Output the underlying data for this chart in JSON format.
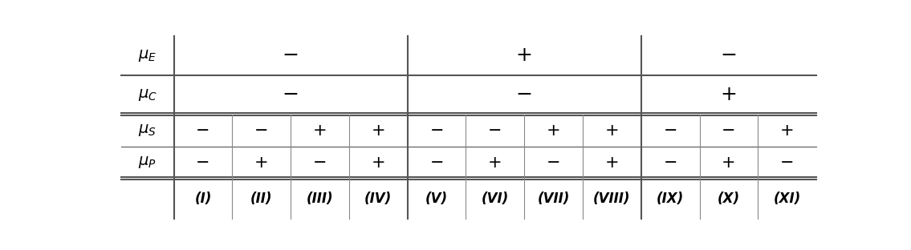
{
  "row_labels_latex": [
    "$\\mu_E$",
    "$\\mu_C$",
    "$\\mu_S$",
    "$\\mu_P$"
  ],
  "col_labels": [
    "(I)",
    "(II)",
    "(III)",
    "(IV)",
    "(V)",
    "(VI)",
    "(VII)",
    "(VIII)",
    "(IX)",
    "(X)",
    "(XI)"
  ],
  "mu_E": [
    "-",
    "-",
    "-",
    "-",
    "+",
    "+",
    "+",
    "+",
    "-",
    "-",
    "-"
  ],
  "mu_C": [
    "-",
    "-",
    "-",
    "-",
    "-",
    "-",
    "-",
    "-",
    "+",
    "+",
    "+"
  ],
  "mu_S": [
    "-",
    "-",
    "+",
    "+",
    "-",
    "-",
    "+",
    "+",
    "-",
    "-",
    "+"
  ],
  "mu_P": [
    "-",
    "+",
    "-",
    "+",
    "-",
    "+",
    "-",
    "+",
    "-",
    "+",
    "-"
  ],
  "n_cols": 11,
  "line_color": "#555555",
  "thin_line_color": "#888888",
  "background_color": "#ffffff",
  "text_color": "#000000",
  "font_size_signs": 15,
  "font_size_labels": 14,
  "font_size_col_labels": 12,
  "group_separators": [
    4,
    8
  ],
  "figsize": [
    11.35,
    3.12
  ],
  "dpi": 100
}
